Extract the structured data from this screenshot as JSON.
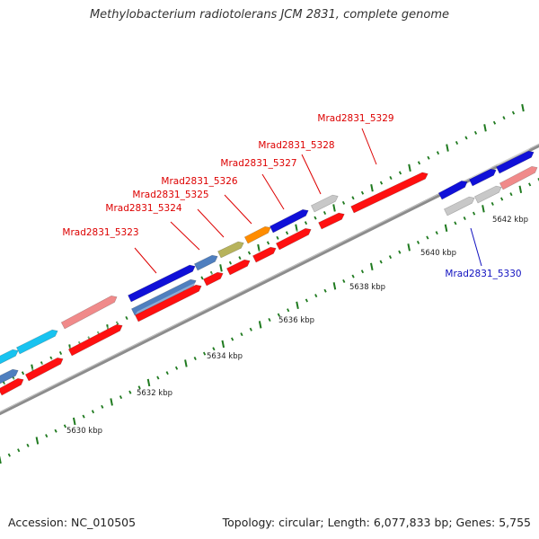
{
  "title": "Methylobacterium radiotolerans JCM 2831, complete genome",
  "footer": {
    "accession": "Accession: NC_010505",
    "summary": "Topology: circular; Length: 6,077,833 bp; Genes: 5,755"
  },
  "colors": {
    "backbone": "#8c8c8c",
    "tick": "#1f7a1f",
    "label_red": "#dd0000",
    "label_blue": "#1010c0"
  },
  "scale_labels": [
    "5630 kbp",
    "5632 kbp",
    "5634 kbp",
    "5636 kbp",
    "5638 kbp",
    "5640 kbp",
    "5642 kbp"
  ],
  "gene_labels": [
    {
      "text": "Mrad2831_5323",
      "color": "#dd0000"
    },
    {
      "text": "Mrad2831_5324",
      "color": "#dd0000"
    },
    {
      "text": "Mrad2831_5325",
      "color": "#dd0000"
    },
    {
      "text": "Mrad2831_5326",
      "color": "#dd0000"
    },
    {
      "text": "Mrad2831_5327",
      "color": "#dd0000"
    },
    {
      "text": "Mrad2831_5328",
      "color": "#dd0000"
    },
    {
      "text": "Mrad2831_5329",
      "color": "#dd0000"
    },
    {
      "text": "Mrad2831_5330",
      "color": "#1010c0"
    }
  ],
  "features": [
    {
      "color": "#18c3f0",
      "lane": "upper2"
    },
    {
      "color": "#18c3f0",
      "lane": "upper2"
    },
    {
      "color": "#f08a8a",
      "lane": "upper2"
    },
    {
      "color": "#1010d8",
      "lane": "upper2"
    },
    {
      "color": "#4f7fbf",
      "lane": "upper1"
    },
    {
      "color": "#4f7fbf",
      "lane": "upper1"
    },
    {
      "color": "#b7b35c",
      "lane": "upper1"
    },
    {
      "color": "#ff8c00",
      "lane": "upper1"
    },
    {
      "color": "#1010d8",
      "lane": "upper2"
    },
    {
      "color": "#4f7fbf",
      "lane": "upper1"
    },
    {
      "color": "#c8c8c8",
      "lane": "upper1"
    },
    {
      "color": "#1010d8",
      "lane": "upper1"
    },
    {
      "color": "#1010d8",
      "lane": "upper1"
    },
    {
      "color": "#1010d8",
      "lane": "upper1"
    },
    {
      "color": "#f08a8a",
      "lane": "upper1"
    },
    {
      "color": "#c8c8c8",
      "lane": "lower"
    },
    {
      "color": "#c8c8c8",
      "lane": "lower"
    },
    {
      "color": "#ff1010",
      "lane": "upper1"
    },
    {
      "color": "#ff1010",
      "lane": "upper1"
    },
    {
      "color": "#ff1010",
      "lane": "upper1"
    },
    {
      "color": "#ff1010",
      "lane": "upper1"
    },
    {
      "color": "#ff1010",
      "lane": "upper1"
    },
    {
      "color": "#ff1010",
      "lane": "upper1"
    },
    {
      "color": "#ff1010",
      "lane": "upper1"
    },
    {
      "color": "#ff1010",
      "lane": "upper1"
    },
    {
      "color": "#ff1010",
      "lane": "upper1"
    },
    {
      "color": "#ff1010",
      "lane": "upper1"
    }
  ]
}
